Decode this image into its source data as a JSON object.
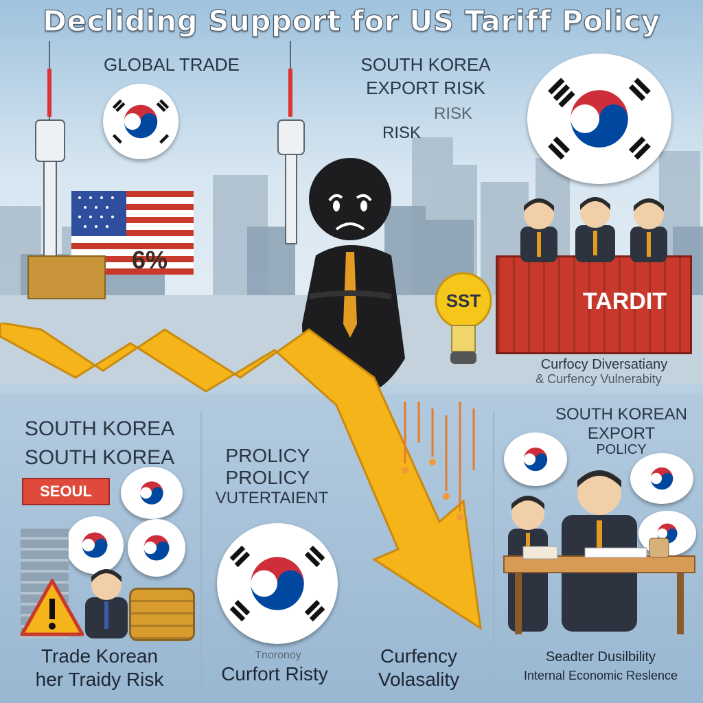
{
  "header": {
    "title": "Decliding Support for US Tariff Policy"
  },
  "top_labels": {
    "global_trade": "GLOBAL TRADE",
    "export_risk_1": "SOUTH KOREA",
    "export_risk_2": "EXPORT RISK",
    "risk_1": "RISK",
    "risk_2": "RISK",
    "percent": "6%",
    "bulb_text": "SST",
    "container_text": "TARDIT",
    "currency_1": "Curfocy Diversatiany",
    "currency_2": "& Curfency Vulnerabity"
  },
  "panels": {
    "left": {
      "heading_1": "SOUTH KOREA",
      "heading_2": "SOUTH KOREA",
      "sign": "SEOUL",
      "caption_1": "Trade Korean",
      "caption_2": "her Traidy Risk"
    },
    "middle": {
      "heading_1": "PROLICY",
      "heading_2": "PROLICY",
      "heading_3": "VUTERTAIENT",
      "caption_1": "Tnoronoy",
      "caption_2": "Curfort Risty"
    },
    "center": {
      "caption_1": "Curfency",
      "caption_2": "Volasality"
    },
    "right": {
      "heading_1": "SOUTH KOREAN",
      "heading_2": "EXPORT",
      "heading_3": "POLICY",
      "caption_1": "Seadter Dusilbility",
      "caption_2": "Internal Economic Reslence"
    }
  },
  "colors": {
    "arrow": "#f4b41a",
    "korea_red": "#cd2e3a",
    "korea_blue": "#0047a0",
    "container": "#c8392b",
    "sky": "#cfe0ee"
  }
}
